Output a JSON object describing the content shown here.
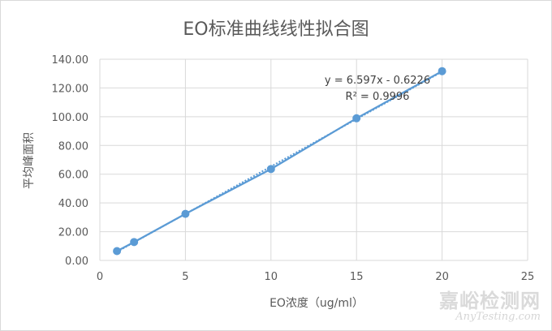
{
  "chart_data": {
    "type": "scatter",
    "title": "EO标准曲线线性拟合图",
    "xlabel": "EO浓度（ug/ml）",
    "ylabel": "平均峰面积",
    "xlim": [
      0,
      25
    ],
    "ylim": [
      0,
      140
    ],
    "x_ticks": [
      "0",
      "5",
      "10",
      "15",
      "20",
      "25"
    ],
    "y_ticks": [
      "0.00",
      "20.00",
      "40.00",
      "60.00",
      "80.00",
      "100.00",
      "120.00",
      "140.00"
    ],
    "grid": true,
    "series": [
      {
        "x": [
          1,
          2,
          5,
          10,
          15,
          20
        ],
        "y": [
          6.5,
          12.8,
          32.4,
          63.6,
          98.9,
          131.7
        ]
      }
    ],
    "trendline": {
      "type": "linear",
      "slope": 6.597,
      "intercept": -0.6226,
      "equation": "y = 6.597x - 0.6226",
      "r2": "R² = 0.9996"
    },
    "colors": {
      "series": "#5b9bd5",
      "grid": "#d9d9d9",
      "text": "#595959",
      "title": "#595959"
    }
  },
  "watermark": {
    "cn": "嘉峪检测网",
    "en": "AnyTesting.com"
  }
}
